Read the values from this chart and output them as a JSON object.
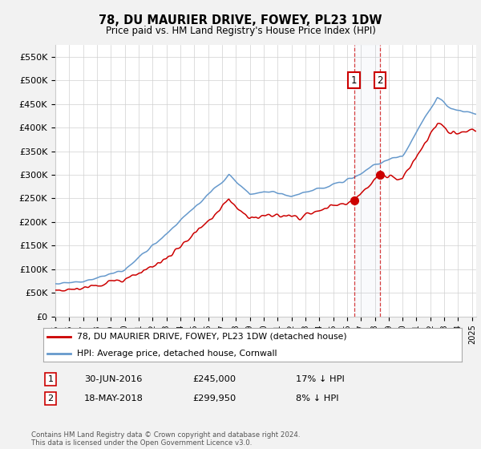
{
  "title": "78, DU MAURIER DRIVE, FOWEY, PL23 1DW",
  "subtitle": "Price paid vs. HM Land Registry's House Price Index (HPI)",
  "ylim": [
    0,
    575000
  ],
  "yticks": [
    0,
    50000,
    100000,
    150000,
    200000,
    250000,
    300000,
    350000,
    400000,
    450000,
    500000,
    550000
  ],
  "ytick_labels": [
    "£0",
    "£50K",
    "£100K",
    "£150K",
    "£200K",
    "£250K",
    "£300K",
    "£350K",
    "£400K",
    "£450K",
    "£500K",
    "£550K"
  ],
  "xlim_start": 1995,
  "xlim_end": 2025.3,
  "bg_color": "#f2f2f2",
  "plot_bg": "#ffffff",
  "hpi_color": "#6699cc",
  "price_color": "#cc0000",
  "sale1_x": 2016.5,
  "sale1_y": 245000,
  "sale2_x": 2018.37,
  "sale2_y": 299950,
  "sale1_date_str": "30-JUN-2016",
  "sale1_price_str": "£245,000",
  "sale1_hpi_str": "17% ↓ HPI",
  "sale2_date_str": "18-MAY-2018",
  "sale2_price_str": "£299,950",
  "sale2_hpi_str": "8% ↓ HPI",
  "legend_line1": "78, DU MAURIER DRIVE, FOWEY, PL23 1DW (detached house)",
  "legend_line2": "HPI: Average price, detached house, Cornwall",
  "footer": "Contains HM Land Registry data © Crown copyright and database right 2024.\nThis data is licensed under the Open Government Licence v3.0."
}
